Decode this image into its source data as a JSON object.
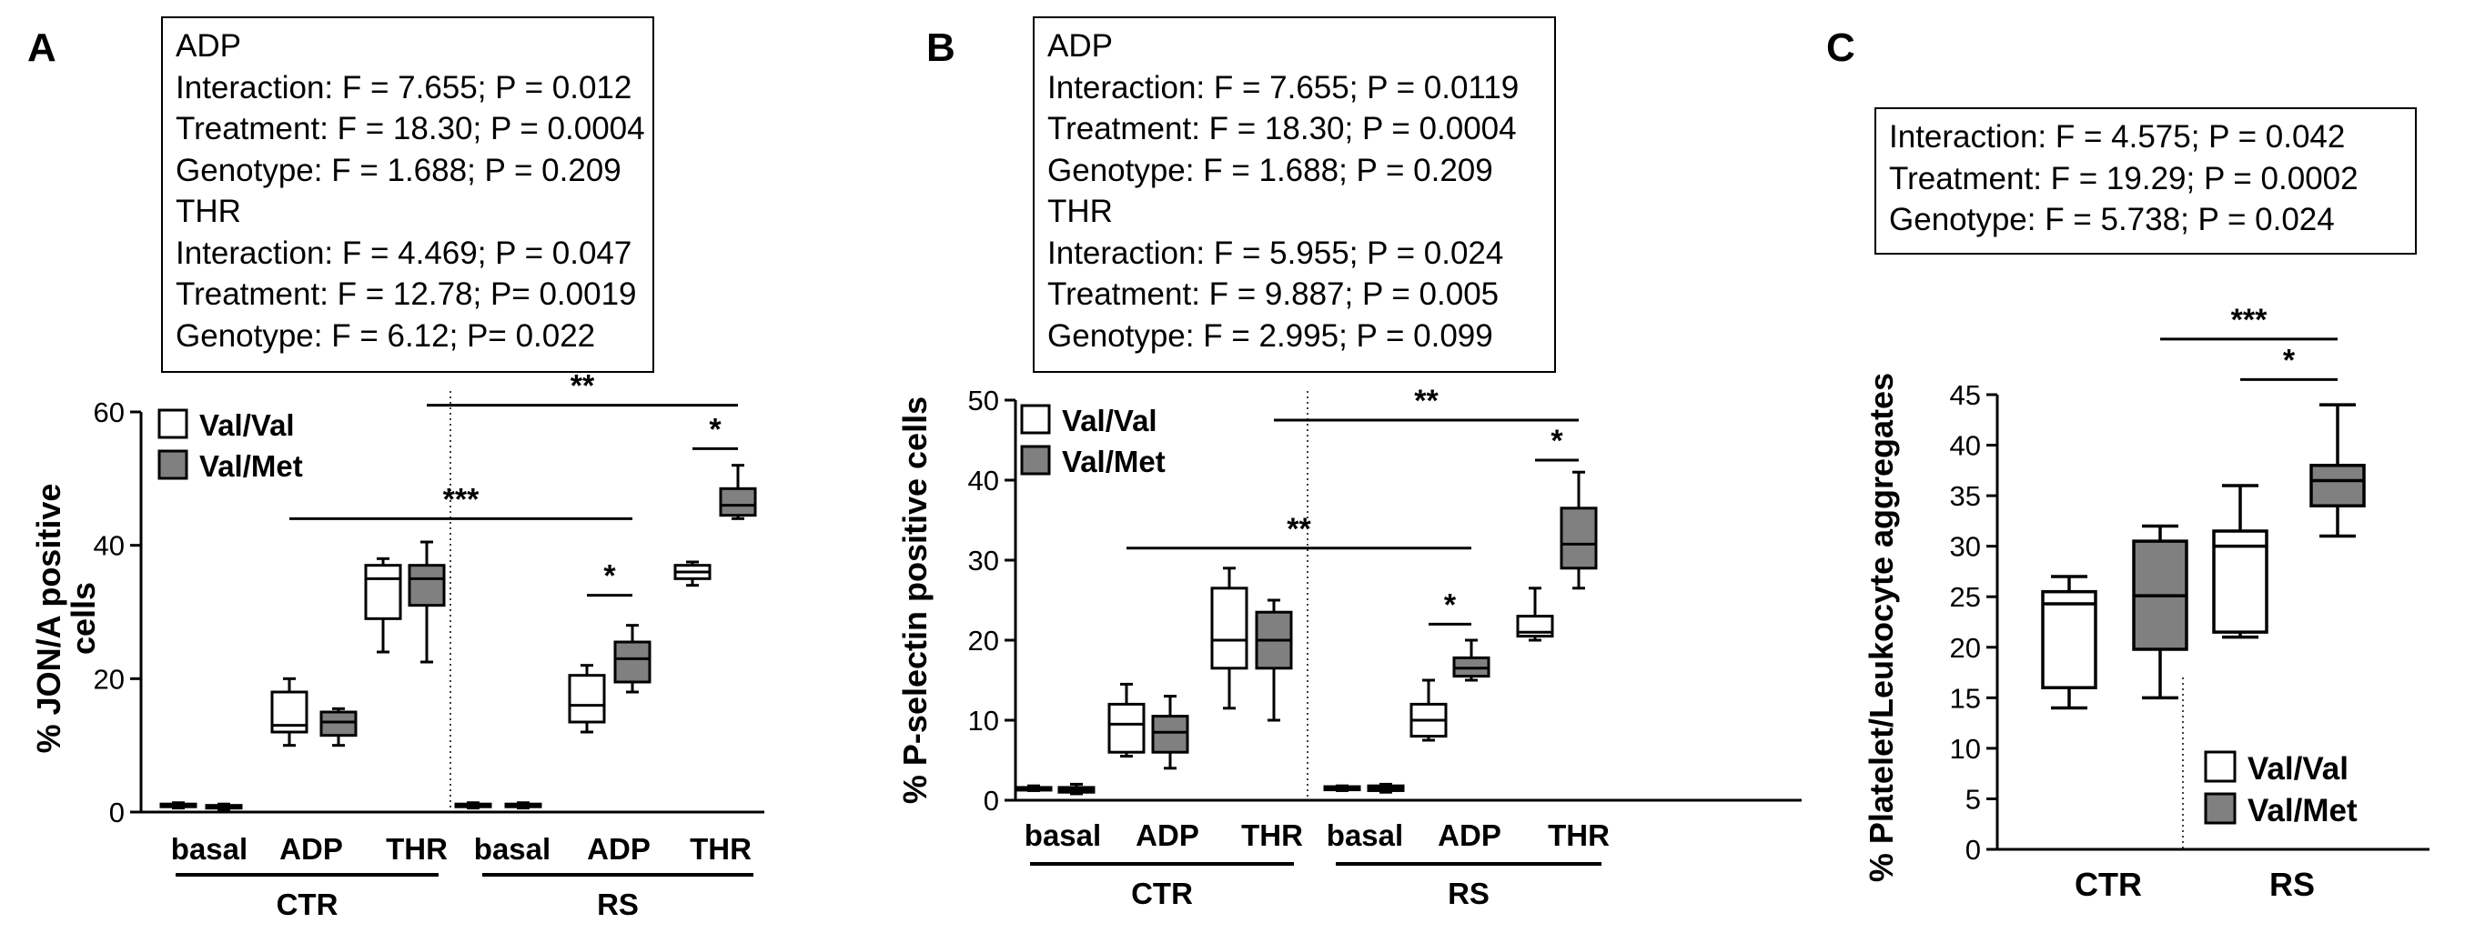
{
  "chart_data": [
    {
      "panel": "A",
      "type": "box",
      "stats": [
        "ADP",
        "Interaction: F = 7.655; P = 0.012",
        "Treatment: F = 18.30; P = 0.0004",
        "Genotype: F = 1.688; P = 0.209",
        "THR",
        "Interaction: F = 4.469; P = 0.047",
        "Treatment: F = 12.78; P= 0.0019",
        "Genotype: F = 6.12; P= 0.022"
      ],
      "ylabel": "% JON/A positive cells",
      "ylim": [
        0,
        60
      ],
      "yticks": [
        0,
        20,
        40,
        60
      ],
      "categories": [
        "basal",
        "ADP",
        "THR",
        "basal",
        "ADP",
        "THR"
      ],
      "groups": [
        "CTR",
        "RS"
      ],
      "legend": [
        "Val/Val",
        "Val/Met"
      ],
      "series": [
        {
          "name": "Val/Val",
          "boxes": [
            [
              0.6,
              0.8,
              1.0,
              1.2,
              1.4
            ],
            [
              10,
              12,
              13,
              18,
              20
            ],
            [
              24,
              29,
              35,
              37,
              38
            ],
            [
              0.6,
              0.8,
              1.0,
              1.2,
              1.4
            ],
            [
              12,
              13.5,
              16,
              20.5,
              22
            ],
            [
              34,
              35,
              36,
              37,
              37.5
            ]
          ]
        },
        {
          "name": "Val/Met",
          "boxes": [
            [
              0.4,
              0.6,
              0.8,
              1.0,
              1.2
            ],
            [
              10,
              11.5,
              13.5,
              15,
              15.5
            ],
            [
              22.5,
              31,
              35,
              37,
              40.5
            ],
            [
              0.6,
              0.8,
              1.0,
              1.2,
              1.4
            ],
            [
              18,
              19.5,
              23,
              25.5,
              28
            ],
            [
              44,
              44.5,
              46,
              48.5,
              52
            ]
          ]
        }
      ],
      "significance": [
        {
          "label": "***",
          "from_box": 2,
          "to_box": 9,
          "y": 44
        },
        {
          "label": "*",
          "from_box": 8,
          "to_box": 9,
          "y": 32.5
        },
        {
          "label": "**",
          "from_box": 5,
          "to_box": 11,
          "y": 61
        },
        {
          "label": "*",
          "from_box": 10,
          "to_box": 11,
          "y": 54.5
        }
      ]
    },
    {
      "panel": "B",
      "type": "box",
      "stats": [
        "ADP",
        "Interaction: F = 7.655; P = 0.0119",
        "Treatment: F = 18.30; P = 0.0004",
        "Genotype:  F = 1.688; P = 0.209",
        "THR",
        "Interaction: F = 5.955; P = 0.024",
        "Treatment: F = 9.887; P = 0.005",
        "Genotype: F = 2.995; P = 0.099"
      ],
      "ylabel": "% P-selectin positive cells",
      "ylim": [
        0,
        50
      ],
      "yticks": [
        0,
        10,
        20,
        30,
        40,
        50
      ],
      "categories": [
        "basal",
        "ADP",
        "THR",
        "basal",
        "ADP",
        "THR"
      ],
      "groups": [
        "CTR",
        "RS"
      ],
      "legend": [
        "Val/Val",
        "Val/Met"
      ],
      "series": [
        {
          "name": "Val/Val",
          "boxes": [
            [
              1.2,
              1.4,
              1.5,
              1.6,
              1.8
            ],
            [
              5.5,
              6,
              9.5,
              12,
              14.5
            ],
            [
              11.5,
              16.5,
              20,
              26.5,
              29
            ],
            [
              1.2,
              1.3,
              1.5,
              1.7,
              1.8
            ],
            [
              7.5,
              8,
              10,
              12,
              15
            ],
            [
              20,
              20.5,
              21,
              23,
              26.5
            ]
          ]
        },
        {
          "name": "Val/Met",
          "boxes": [
            [
              0.8,
              1,
              1.3,
              1.6,
              2
            ],
            [
              4,
              6,
              8.5,
              10.5,
              13
            ],
            [
              10,
              16.5,
              20,
              23.5,
              25
            ],
            [
              1,
              1.2,
              1.5,
              1.8,
              2
            ],
            [
              15,
              15.5,
              16.5,
              17.8,
              20
            ],
            [
              26.5,
              29,
              32,
              36.5,
              41
            ]
          ]
        }
      ],
      "significance": [
        {
          "label": "**",
          "from_box": 2,
          "to_box": 9,
          "y": 31.5
        },
        {
          "label": "*",
          "from_box": 8,
          "to_box": 9,
          "y": 22
        },
        {
          "label": "**",
          "from_box": 5,
          "to_box": 11,
          "y": 47.5
        },
        {
          "label": "*",
          "from_box": 10,
          "to_box": 11,
          "y": 42.5
        }
      ]
    },
    {
      "panel": "C",
      "type": "box",
      "stats": [
        "Interaction: F = 4.575; P = 0.042",
        "Treatment: F = 19.29; P = 0.0002",
        "Genotype: F = 5.738; P = 0.024"
      ],
      "ylabel": "% Platelet/Leukocyte aggregates",
      "ylim": [
        0,
        45
      ],
      "yticks": [
        0,
        5,
        10,
        15,
        20,
        25,
        30,
        35,
        40,
        45
      ],
      "categories": [
        "CTR",
        "RS"
      ],
      "legend": [
        "Val/Val",
        "Val/Met"
      ],
      "series": [
        {
          "name": "Val/Val",
          "boxes": [
            [
              14,
              16,
              24.3,
              25.5,
              27
            ],
            [
              21,
              21.5,
              30,
              31.5,
              36
            ]
          ]
        },
        {
          "name": "Val/Met",
          "boxes": [
            [
              15,
              19.8,
              25.1,
              30.5,
              32
            ],
            [
              31,
              34,
              36.5,
              38,
              44
            ]
          ]
        }
      ],
      "significance": [
        {
          "label": "***",
          "from_box": 1,
          "to_box": 3,
          "y": 50.5
        },
        {
          "label": "*",
          "from_box": 2,
          "to_box": 3,
          "y": 46.5
        }
      ]
    }
  ]
}
